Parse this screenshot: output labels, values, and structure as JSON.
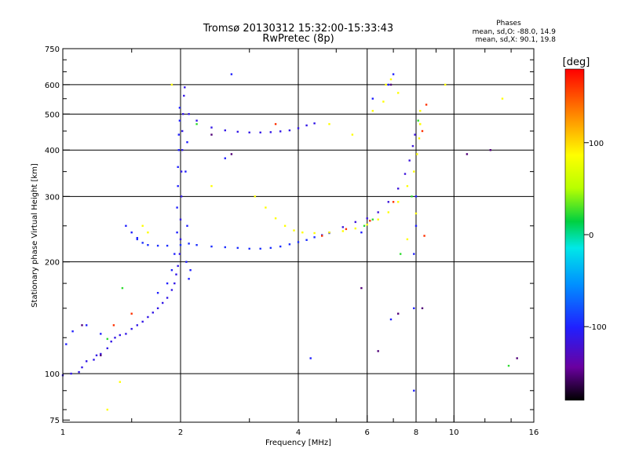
{
  "chart_data": {
    "type": "scatter",
    "title": "Tromsø 20130312 15:32:00-15:33:43",
    "subtitle": "RwPretec (8p)",
    "stats": {
      "heading": "Phases",
      "line_o": "mean, sd,O: -88.0, 14.9",
      "line_x": "mean, sd,X:  90.1, 19.8"
    },
    "xlabel": "Frequency [MHz]",
    "ylabel": "Stationary phase Virtual Height [km]",
    "x_scale": "log",
    "y_scale": "log",
    "xlim": [
      1,
      16
    ],
    "ylim": [
      74,
      750
    ],
    "x_tick_labels": [
      1,
      2,
      4,
      6,
      8,
      10,
      16
    ],
    "y_tick_labels": [
      75,
      100,
      200,
      300,
      400,
      500,
      600,
      750
    ],
    "x_major_grid": [
      2,
      4,
      6,
      8,
      10
    ],
    "y_major_grid": [
      100,
      200,
      300,
      400,
      500,
      600
    ],
    "grid": true,
    "colorbar": {
      "label": "[deg]",
      "range": [
        -180,
        180
      ],
      "tick_labels": [
        100,
        0,
        -100
      ],
      "colors": [
        "#000000",
        "#6a00a0",
        "#2020ff",
        "#0090ff",
        "#00e8e8",
        "#00d040",
        "#b8ff00",
        "#ffff00",
        "#ff8000",
        "#ff0000"
      ]
    },
    "series": [
      {
        "phase": -110,
        "points": [
          [
            1.0,
            99
          ],
          [
            1.05,
            100
          ],
          [
            1.1,
            101
          ],
          [
            1.12,
            104
          ],
          [
            1.15,
            108
          ],
          [
            1.2,
            109
          ],
          [
            1.22,
            112
          ],
          [
            1.25,
            113
          ],
          [
            1.3,
            117
          ],
          [
            1.33,
            122
          ],
          [
            1.36,
            125
          ],
          [
            1.4,
            127
          ],
          [
            1.45,
            128
          ],
          [
            1.5,
            132
          ],
          [
            1.55,
            135
          ],
          [
            1.6,
            138
          ],
          [
            1.65,
            142
          ],
          [
            1.7,
            146
          ],
          [
            1.75,
            150
          ],
          [
            1.8,
            155
          ],
          [
            1.85,
            160
          ],
          [
            1.9,
            168
          ],
          [
            1.93,
            175
          ],
          [
            1.95,
            185
          ],
          [
            1.97,
            195
          ],
          [
            1.99,
            210
          ],
          [
            2.0,
            230
          ],
          [
            2.0,
            260
          ],
          [
            2.01,
            300
          ],
          [
            2.01,
            350
          ],
          [
            2.02,
            400
          ],
          [
            2.02,
            450
          ],
          [
            2.03,
            500
          ],
          [
            2.04,
            560
          ],
          [
            2.05,
            590
          ]
        ]
      },
      {
        "phase": -95,
        "points": [
          [
            1.55,
            230
          ],
          [
            1.6,
            225
          ],
          [
            1.65,
            222
          ],
          [
            1.75,
            221
          ],
          [
            1.85,
            221
          ],
          [
            2.0,
            222
          ],
          [
            2.1,
            224
          ],
          [
            2.2,
            222
          ],
          [
            2.4,
            220
          ],
          [
            2.6,
            219
          ],
          [
            2.8,
            218
          ],
          [
            3.0,
            217
          ],
          [
            3.2,
            217
          ],
          [
            3.4,
            218
          ],
          [
            3.6,
            220
          ],
          [
            3.8,
            223
          ],
          [
            4.0,
            226
          ],
          [
            4.2,
            229
          ],
          [
            4.4,
            233
          ],
          [
            4.6,
            236
          ],
          [
            4.8,
            239
          ]
        ]
      },
      {
        "phase": -110,
        "points": [
          [
            2.1,
            500
          ],
          [
            2.2,
            480
          ],
          [
            2.4,
            460
          ],
          [
            2.6,
            452
          ],
          [
            2.8,
            448
          ],
          [
            3.0,
            446
          ],
          [
            3.2,
            446
          ],
          [
            3.4,
            447
          ],
          [
            3.6,
            449
          ],
          [
            3.8,
            452
          ],
          [
            4.0,
            458
          ],
          [
            4.2,
            466
          ],
          [
            4.4,
            472
          ]
        ]
      },
      {
        "phase": -115,
        "points": [
          [
            4.8,
            240
          ],
          [
            5.2,
            248
          ],
          [
            5.6,
            256
          ],
          [
            6.0,
            262
          ],
          [
            6.4,
            272
          ],
          [
            6.8,
            290
          ],
          [
            7.2,
            315
          ],
          [
            7.5,
            345
          ],
          [
            7.7,
            375
          ],
          [
            7.85,
            410
          ],
          [
            7.95,
            440
          ]
        ]
      },
      {
        "phase": 100,
        "points": [
          [
            3.1,
            300
          ],
          [
            3.3,
            280
          ],
          [
            3.5,
            262
          ],
          [
            3.7,
            250
          ],
          [
            3.9,
            243
          ],
          [
            4.1,
            240
          ],
          [
            4.4,
            239
          ],
          [
            4.8,
            240
          ],
          [
            5.2,
            242
          ],
          [
            5.6,
            246
          ],
          [
            6.0,
            252
          ],
          [
            6.4,
            260
          ],
          [
            6.8,
            272
          ],
          [
            7.2,
            290
          ],
          [
            7.6,
            320
          ],
          [
            7.9,
            350
          ],
          [
            8.05,
            390
          ],
          [
            8.15,
            430
          ],
          [
            8.2,
            470
          ],
          [
            8.2,
            510
          ]
        ]
      },
      {
        "phase": -100,
        "points": [
          [
            1.45,
            250
          ],
          [
            1.5,
            240
          ],
          [
            1.55,
            232
          ],
          [
            1.02,
            120
          ],
          [
            1.06,
            130
          ],
          [
            1.15,
            135
          ],
          [
            1.25,
            128
          ],
          [
            1.75,
            165
          ],
          [
            1.85,
            175
          ],
          [
            1.9,
            190
          ],
          [
            1.93,
            210
          ],
          [
            1.96,
            240
          ],
          [
            1.96,
            280
          ],
          [
            1.97,
            320
          ],
          [
            1.97,
            360
          ],
          [
            1.98,
            400
          ],
          [
            1.98,
            440
          ],
          [
            1.99,
            480
          ],
          [
            1.99,
            520
          ],
          [
            2.06,
            350
          ],
          [
            2.08,
            420
          ],
          [
            2.08,
            250
          ],
          [
            2.07,
            200
          ],
          [
            2.1,
            180
          ],
          [
            2.12,
            190
          ],
          [
            4.3,
            110
          ],
          [
            6.9,
            140
          ],
          [
            7.9,
            90
          ],
          [
            7.9,
            150
          ],
          [
            7.9,
            210
          ],
          [
            8.0,
            300
          ],
          [
            8.0,
            250
          ],
          [
            6.2,
            550
          ],
          [
            6.8,
            600
          ],
          [
            7.0,
            640
          ],
          [
            5.8,
            240
          ],
          [
            2.6,
            380
          ],
          [
            2.7,
            640
          ]
        ]
      },
      {
        "phase": 100,
        "points": [
          [
            1.6,
            250
          ],
          [
            1.65,
            240
          ],
          [
            1.3,
            80
          ],
          [
            1.4,
            95
          ],
          [
            1.9,
            600
          ],
          [
            2.4,
            320
          ],
          [
            6.2,
            510
          ],
          [
            6.6,
            540
          ],
          [
            6.7,
            600
          ],
          [
            6.9,
            620
          ],
          [
            7.2,
            570
          ],
          [
            7.6,
            230
          ],
          [
            8.0,
            270
          ],
          [
            8.2,
            470
          ],
          [
            9.5,
            600
          ],
          [
            13.3,
            550
          ],
          [
            5.5,
            440
          ],
          [
            4.8,
            470
          ]
        ]
      },
      {
        "phase": -150,
        "points": [
          [
            1.12,
            135
          ],
          [
            1.25,
            112
          ],
          [
            2.4,
            440
          ],
          [
            2.7,
            390
          ],
          [
            6.4,
            115
          ],
          [
            7.2,
            145
          ],
          [
            8.3,
            150
          ],
          [
            12.4,
            400
          ],
          [
            14.5,
            110
          ],
          [
            10.8,
            390
          ],
          [
            5.8,
            170
          ],
          [
            6.9,
            600
          ]
        ]
      },
      {
        "phase": 165,
        "points": [
          [
            1.35,
            135
          ],
          [
            1.5,
            145
          ],
          [
            4.6,
            235
          ],
          [
            5.3,
            245
          ],
          [
            6.1,
            258
          ],
          [
            7.0,
            290
          ],
          [
            8.3,
            450
          ],
          [
            8.5,
            530
          ],
          [
            3.5,
            470
          ],
          [
            8.4,
            235
          ]
        ]
      },
      {
        "phase": 30,
        "points": [
          [
            1.3,
            124
          ],
          [
            1.42,
            170
          ],
          [
            2.2,
            470
          ],
          [
            5.9,
            250
          ],
          [
            6.2,
            260
          ],
          [
            7.8,
            300
          ],
          [
            8.1,
            480
          ],
          [
            13.8,
            105
          ],
          [
            7.3,
            210
          ]
        ]
      }
    ]
  }
}
